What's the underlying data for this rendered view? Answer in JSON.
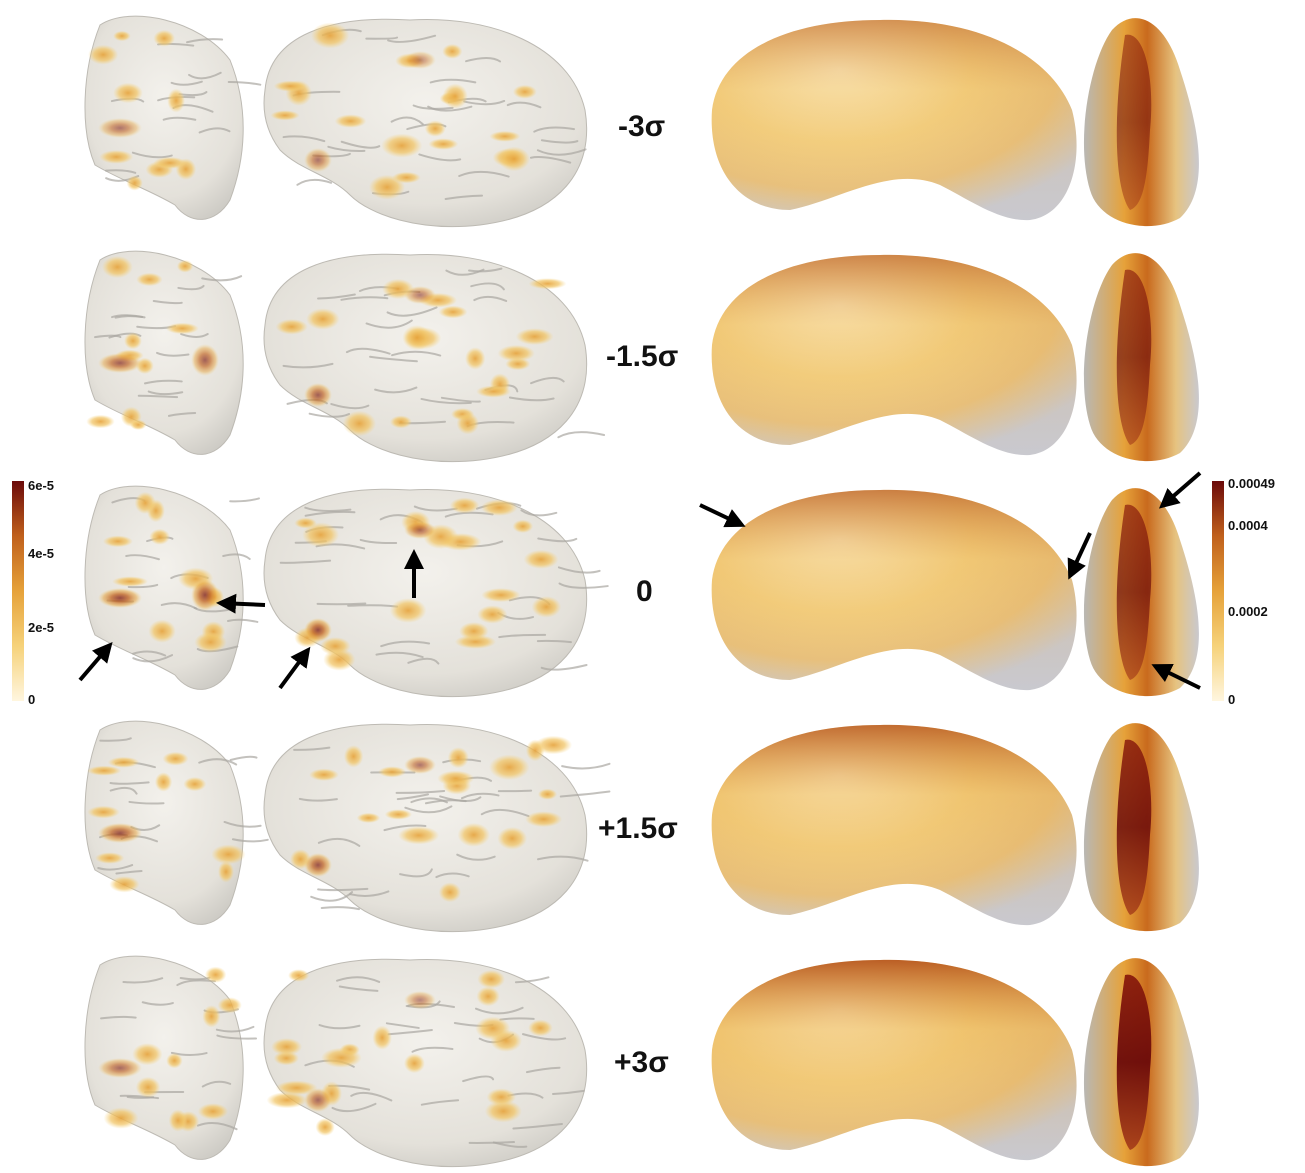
{
  "rows": [
    {
      "label": "-3σ",
      "cortex_hot": 0.55,
      "hippo_hot": 0.55
    },
    {
      "label": "-1.5σ",
      "cortex_hot": 0.65,
      "hippo_hot": 0.65
    },
    {
      "label": "0",
      "cortex_hot": 0.75,
      "hippo_hot": 0.7
    },
    {
      "label": "+1.5σ",
      "cortex_hot": 0.7,
      "hippo_hot": 0.85
    },
    {
      "label": "+3σ",
      "cortex_hot": 0.6,
      "hippo_hot": 0.95
    }
  ],
  "colorbar_left": {
    "ticks": [
      "6e-5",
      "4e-5",
      "2e-5",
      "0"
    ],
    "max": 6e-05
  },
  "colorbar_right": {
    "ticks": [
      "0.00049",
      "0.0004",
      "0.0002",
      "0"
    ],
    "max": 0.00049
  },
  "colors": {
    "surface": "#e9e6df",
    "surface_shadow": "#b9b8b4",
    "low": "#f6d27a",
    "mid": "#e6a23a",
    "high": "#b14a12",
    "max": "#6b0a0a",
    "arrow": "#000000"
  }
}
